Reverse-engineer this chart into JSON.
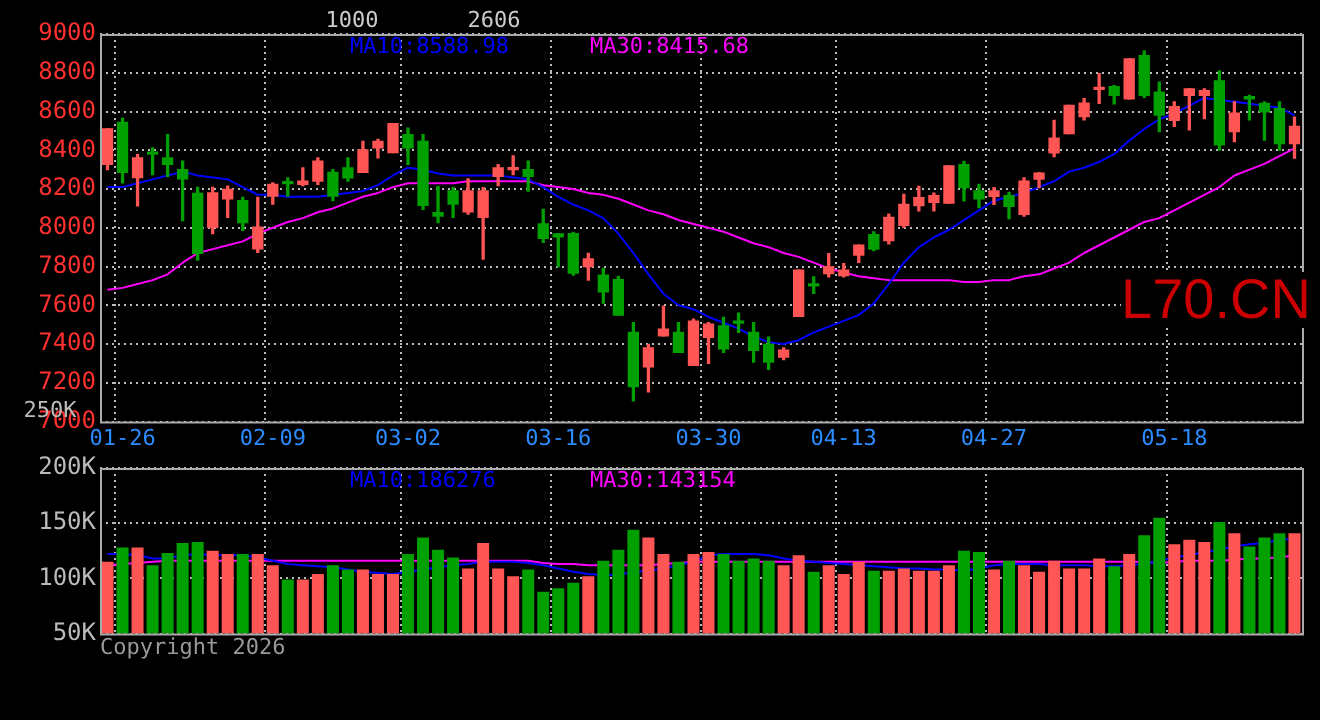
{
  "chart_data": [
    {
      "type": "candlestick",
      "annotations": [
        "1000",
        "2606",
        "L70.CN",
        "250K"
      ],
      "categories": [
        null,
        "01-26",
        null,
        null,
        null,
        null,
        null,
        null,
        null,
        null,
        null,
        "02-09",
        null,
        null,
        null,
        null,
        null,
        null,
        null,
        null,
        "03-02",
        null,
        null,
        null,
        null,
        null,
        null,
        null,
        null,
        null,
        "03-16",
        null,
        null,
        null,
        null,
        null,
        null,
        null,
        null,
        null,
        "03-30",
        null,
        null,
        null,
        null,
        null,
        null,
        null,
        null,
        "04-13",
        null,
        null,
        null,
        null,
        null,
        null,
        null,
        null,
        null,
        "04-27",
        null,
        null,
        null,
        null,
        null,
        null,
        null,
        null,
        null,
        null,
        null,
        "05-18",
        null,
        null,
        null,
        null,
        null,
        null,
        null,
        null
      ],
      "ohlc": [
        [
          8327,
          8510,
          8300,
          8510
        ],
        [
          8544,
          8565,
          8232,
          8286
        ],
        [
          8259,
          8378,
          8113,
          8361
        ],
        [
          8388,
          8412,
          8275,
          8380
        ],
        [
          8361,
          8480,
          8266,
          8327
        ],
        [
          8300,
          8344,
          8037,
          8252
        ],
        [
          8177,
          8208,
          7834,
          7868
        ],
        [
          8003,
          8208,
          7970,
          8180
        ],
        [
          8150,
          8215,
          8054,
          8198
        ],
        [
          8140,
          8157,
          7987,
          8027
        ],
        [
          7891,
          8157,
          7874,
          8003
        ],
        [
          8163,
          8231,
          8122,
          8224
        ],
        [
          8235,
          8258,
          8163,
          8228
        ],
        [
          8224,
          8309,
          8218,
          8241
        ],
        [
          8241,
          8361,
          8224,
          8344
        ],
        [
          8286,
          8300,
          8140,
          8163
        ],
        [
          8309,
          8361,
          8241,
          8258
        ],
        [
          8286,
          8446,
          8286,
          8402
        ],
        [
          8412,
          8456,
          8361,
          8446
        ],
        [
          8388,
          8537,
          8388,
          8537
        ],
        [
          8480,
          8514,
          8327,
          8412
        ],
        [
          8446,
          8480,
          8095,
          8116
        ],
        [
          8078,
          8214,
          8027,
          8061
        ],
        [
          8190,
          8207,
          8054,
          8122
        ],
        [
          8082,
          8252,
          8071,
          8190
        ],
        [
          8054,
          8207,
          7839,
          8190
        ],
        [
          8265,
          8326,
          8218,
          8309
        ],
        [
          8300,
          8371,
          8275,
          8306
        ],
        [
          8300,
          8344,
          8190,
          8265
        ],
        [
          8020,
          8095,
          7925,
          7946
        ],
        [
          7969,
          7970,
          7800,
          7953
        ],
        [
          7970,
          7976,
          7756,
          7766
        ],
        [
          7800,
          7868,
          7730,
          7840
        ],
        [
          7756,
          7790,
          7612,
          7670
        ],
        [
          7732,
          7749,
          7550,
          7550
        ],
        [
          7460,
          7511,
          7107,
          7181
        ],
        [
          7283,
          7398,
          7154,
          7380
        ],
        [
          7443,
          7596,
          7443,
          7477
        ],
        [
          7460,
          7511,
          7358,
          7358
        ],
        [
          7290,
          7528,
          7290,
          7518
        ],
        [
          7435,
          7511,
          7300,
          7503
        ],
        [
          7494,
          7537,
          7358,
          7375
        ],
        [
          7515,
          7560,
          7460,
          7508
        ],
        [
          7460,
          7511,
          7307,
          7368
        ],
        [
          7398,
          7436,
          7270,
          7307
        ],
        [
          7333,
          7380,
          7320,
          7368
        ],
        [
          7543,
          7781,
          7543,
          7781
        ],
        [
          7710,
          7747,
          7662,
          7700
        ],
        [
          7764,
          7866,
          7747,
          7798
        ],
        [
          7754,
          7815,
          7747,
          7781
        ],
        [
          7859,
          7910,
          7822,
          7910
        ],
        [
          7965,
          7979,
          7883,
          7890
        ],
        [
          7934,
          8070,
          7917,
          8053
        ],
        [
          8013,
          8172,
          8002,
          8121
        ],
        [
          8115,
          8213,
          8087,
          8156
        ],
        [
          8132,
          8179,
          8087,
          8166
        ],
        [
          8128,
          8319,
          8128,
          8319
        ],
        [
          8326,
          8343,
          8139,
          8207
        ],
        [
          8190,
          8224,
          8104,
          8149
        ],
        [
          8162,
          8207,
          8121,
          8190
        ],
        [
          8166,
          8183,
          8047,
          8111
        ],
        [
          8070,
          8258,
          8060,
          8241
        ],
        [
          8251,
          8285,
          8207,
          8282
        ],
        [
          8387,
          8554,
          8367,
          8462
        ],
        [
          8486,
          8632,
          8486,
          8632
        ],
        [
          8574,
          8666,
          8557,
          8643
        ],
        [
          8714,
          8796,
          8642,
          8717
        ],
        [
          8728,
          8734,
          8639,
          8683
        ],
        [
          8666,
          8871,
          8666,
          8871
        ],
        [
          8888,
          8911,
          8673,
          8683
        ],
        [
          8700,
          8751,
          8496,
          8581
        ],
        [
          8554,
          8649,
          8523,
          8625
        ],
        [
          8683,
          8717,
          8506,
          8717
        ],
        [
          8683,
          8717,
          8564,
          8707
        ],
        [
          8758,
          8809,
          8401,
          8428
        ],
        [
          8496,
          8649,
          8445,
          8591
        ],
        [
          8669,
          8683,
          8557,
          8666
        ],
        [
          8642,
          8649,
          8452,
          8598
        ],
        [
          8615,
          8649,
          8401,
          8435
        ],
        [
          8435,
          8571,
          8360,
          8523
        ]
      ],
      "colors": [
        "#ff5555",
        "#00a000",
        "#ff5555",
        "#00a000",
        "#00a000",
        "#00a000",
        "#00a000",
        "#ff5555",
        "#ff5555",
        "#00a000",
        "#ff5555",
        "#ff5555",
        "#00a000",
        "#ff5555",
        "#ff5555",
        "#00a000",
        "#00a000",
        "#ff5555",
        "#ff5555",
        "#ff5555",
        "#00a000",
        "#00a000",
        "#00a000",
        "#00a000",
        "#ff5555",
        "#ff5555",
        "#ff5555",
        "#ff5555",
        "#00a000",
        "#00a000",
        "#00a000",
        "#00a000",
        "#ff5555",
        "#00a000",
        "#00a000",
        "#00a000",
        "#ff5555",
        "#ff5555",
        "#00a000",
        "#ff5555",
        "#ff5555",
        "#00a000",
        "#00a000",
        "#00a000",
        "#00a000",
        "#ff5555",
        "#ff5555",
        "#00a000",
        "#ff5555",
        "#ff5555",
        "#ff5555",
        "#00a000",
        "#ff5555",
        "#ff5555",
        "#ff5555",
        "#ff5555",
        "#ff5555",
        "#00a000",
        "#00a000",
        "#ff5555",
        "#00a000",
        "#ff5555",
        "#ff5555",
        "#ff5555",
        "#ff5555",
        "#ff5555",
        "#ff5555",
        "#00a000",
        "#ff5555",
        "#00a000",
        "#00a000",
        "#ff5555",
        "#ff5555",
        "#ff5555",
        "#00a000",
        "#ff5555",
        "#00a000",
        "#00a000",
        "#00a000",
        "#ff5555"
      ],
      "series": [
        {
          "name": "MA10:8588.98",
          "type": "line",
          "color": "#0000ff",
          "values": [
            8210,
            8210,
            8230,
            8250,
            8270,
            8290,
            8270,
            8260,
            8250,
            8210,
            8170,
            8170,
            8160,
            8160,
            8160,
            8170,
            8180,
            8190,
            8220,
            8270,
            8310,
            8300,
            8280,
            8270,
            8270,
            8270,
            8270,
            8260,
            8250,
            8210,
            8160,
            8120,
            8090,
            8050,
            7970,
            7870,
            7760,
            7660,
            7600,
            7580,
            7540,
            7510,
            7480,
            7440,
            7410,
            7400,
            7420,
            7460,
            7490,
            7520,
            7550,
            7610,
            7710,
            7820,
            7900,
            7950,
            7990,
            8040,
            8090,
            8140,
            8160,
            8180,
            8210,
            8240,
            8290,
            8310,
            8340,
            8380,
            8450,
            8510,
            8560,
            8590,
            8630,
            8670,
            8660,
            8650,
            8640,
            8630,
            8620,
            8580
          ]
        },
        {
          "name": "MA30:8415.68",
          "type": "line",
          "color": "#ff00ff",
          "values": [
            7680,
            7690,
            7710,
            7730,
            7760,
            7820,
            7870,
            7890,
            7910,
            7930,
            7970,
            8000,
            8030,
            8050,
            8080,
            8100,
            8130,
            8160,
            8180,
            8210,
            8230,
            8230,
            8230,
            8230,
            8240,
            8240,
            8240,
            8240,
            8240,
            8220,
            8210,
            8200,
            8180,
            8170,
            8150,
            8120,
            8090,
            8070,
            8040,
            8020,
            8000,
            7980,
            7950,
            7920,
            7900,
            7870,
            7850,
            7820,
            7790,
            7770,
            7750,
            7740,
            7730,
            7730,
            7730,
            7730,
            7730,
            7720,
            7720,
            7730,
            7730,
            7750,
            7760,
            7790,
            7820,
            7870,
            7910,
            7950,
            7990,
            8030,
            8050,
            8090,
            8130,
            8170,
            8210,
            8270,
            8300,
            8330,
            8370,
            8410
          ]
        }
      ],
      "ylim": [
        7000,
        9000
      ],
      "yticks": [
        7000,
        7200,
        7400,
        7600,
        7800,
        8000,
        8200,
        8400,
        8600,
        8800,
        9000
      ],
      "grid": true
    },
    {
      "type": "bar",
      "annotations": [
        "Copyright 2026"
      ],
      "tick_labels": "y",
      "categories": [
        null,
        null,
        null,
        null,
        null,
        null,
        null,
        null,
        null,
        null,
        null,
        null,
        null,
        null,
        null,
        null,
        null,
        null,
        null,
        null,
        null,
        null,
        null,
        null,
        null,
        null,
        null,
        null,
        null,
        null,
        null,
        null,
        null,
        null,
        null,
        null,
        null,
        null,
        null,
        null,
        null,
        null,
        null,
        null,
        null,
        null,
        null,
        null,
        null,
        null,
        null,
        null,
        null,
        null,
        null,
        null,
        null,
        null,
        null,
        null,
        null,
        null,
        null,
        null,
        null,
        null,
        null,
        null,
        null,
        null,
        null,
        null,
        null,
        null,
        null,
        null,
        null,
        null,
        null,
        null
      ],
      "series": [
        {
          "colors": [
            "#ff5555",
            "#00a000",
            "#ff5555",
            "#00a000",
            "#00a000",
            "#00a000",
            "#00a000",
            "#ff5555",
            "#ff5555",
            "#00a000",
            "#ff5555",
            "#ff5555",
            "#00a000",
            "#ff5555",
            "#ff5555",
            "#00a000",
            "#00a000",
            "#ff5555",
            "#ff5555",
            "#ff5555",
            "#00a000",
            "#00a000",
            "#00a000",
            "#00a000",
            "#ff5555",
            "#ff5555",
            "#ff5555",
            "#ff5555",
            "#00a000",
            "#00a000",
            "#00a000",
            "#00a000",
            "#ff5555",
            "#00a000",
            "#00a000",
            "#00a000",
            "#ff5555",
            "#ff5555",
            "#00a000",
            "#ff5555",
            "#ff5555",
            "#00a000",
            "#00a000",
            "#00a000",
            "#00a000",
            "#ff5555",
            "#ff5555",
            "#00a000",
            "#ff5555",
            "#ff5555",
            "#ff5555",
            "#00a000",
            "#ff5555",
            "#ff5555",
            "#ff5555",
            "#ff5555",
            "#ff5555",
            "#00a000",
            "#00a000",
            "#ff5555",
            "#00a000",
            "#ff5555",
            "#ff5555",
            "#ff5555",
            "#ff5555",
            "#ff5555",
            "#ff5555",
            "#00a000",
            "#ff5555",
            "#00a000",
            "#00a000",
            "#ff5555",
            "#ff5555",
            "#ff5555",
            "#00a000",
            "#ff5555",
            "#00a000",
            "#00a000",
            "#00a000",
            "#ff5555"
          ],
          "values": [
            115000,
            128000,
            128000,
            112000,
            123000,
            132000,
            133000,
            125000,
            122000,
            122000,
            122000,
            112000,
            99000,
            99000,
            104000,
            112000,
            108000,
            108000,
            104000,
            104000,
            122000,
            137000,
            126000,
            119000,
            109000,
            132000,
            109000,
            102000,
            108000,
            88000,
            91000,
            96000,
            102000,
            116000,
            126000,
            144000,
            137000,
            122000,
            115000,
            122000,
            124000,
            122000,
            116000,
            118000,
            116000,
            112000,
            121000,
            106000,
            112000,
            104000,
            115000,
            107000,
            107000,
            109000,
            107000,
            107000,
            112000,
            125000,
            124000,
            108000,
            116000,
            112000,
            106000,
            116000,
            109000,
            109000,
            118000,
            111000,
            122000,
            139000,
            155000,
            131000,
            135000,
            133000,
            151000,
            141000,
            129000,
            137000,
            141000,
            141000
          ]
        },
        {
          "name": "MA10:186276",
          "type": "line",
          "color": "#0000ff",
          "values": [
            122000,
            122000,
            121000,
            118000,
            118000,
            121000,
            122000,
            121000,
            121000,
            121000,
            119000,
            116000,
            113000,
            112000,
            111000,
            110000,
            108000,
            106000,
            105000,
            104000,
            106000,
            108000,
            110000,
            112000,
            113000,
            115000,
            115000,
            115000,
            114000,
            112000,
            109000,
            106000,
            104000,
            103000,
            103000,
            106000,
            107000,
            109000,
            112000,
            115000,
            121000,
            122000,
            122000,
            122000,
            121000,
            118000,
            116000,
            115000,
            114000,
            113000,
            112000,
            111000,
            110000,
            109000,
            109000,
            108000,
            108000,
            107000,
            109000,
            112000,
            113000,
            113000,
            113000,
            112000,
            112000,
            112000,
            111000,
            111000,
            112000,
            113000,
            116000,
            119000,
            121000,
            124000,
            126000,
            129000,
            131000,
            132000,
            135000,
            136000
          ]
        },
        {
          "name": "MA30:143154",
          "type": "line",
          "color": "#ff00ff",
          "values": [
            112000,
            113000,
            114000,
            115000,
            116000,
            116000,
            116000,
            116000,
            116000,
            116000,
            116000,
            116000,
            116000,
            116000,
            116000,
            116000,
            116000,
            116000,
            116000,
            116000,
            116000,
            116000,
            116000,
            116000,
            116000,
            116000,
            116000,
            116000,
            116000,
            114000,
            113000,
            113000,
            112000,
            112000,
            112000,
            112000,
            112000,
            113000,
            114000,
            115000,
            115000,
            115000,
            115000,
            115000,
            115000,
            115000,
            115000,
            115000,
            115000,
            115000,
            115000,
            115000,
            115000,
            115000,
            115000,
            115000,
            115000,
            115000,
            115000,
            115000,
            115000,
            115000,
            115000,
            115000,
            115000,
            115000,
            115000,
            115000,
            115000,
            115000,
            114000,
            115000,
            116000,
            116000,
            116000,
            117000,
            118000,
            118000,
            119000,
            121000
          ]
        }
      ],
      "ylim": [
        50000,
        200000
      ],
      "yticks": [
        {
          "value": 50000,
          "label": "50K"
        },
        {
          "value": 100000,
          "label": "100K"
        },
        {
          "value": 150000,
          "label": "150K"
        },
        {
          "value": 200000,
          "label": "200K"
        }
      ],
      "grid": true
    }
  ]
}
